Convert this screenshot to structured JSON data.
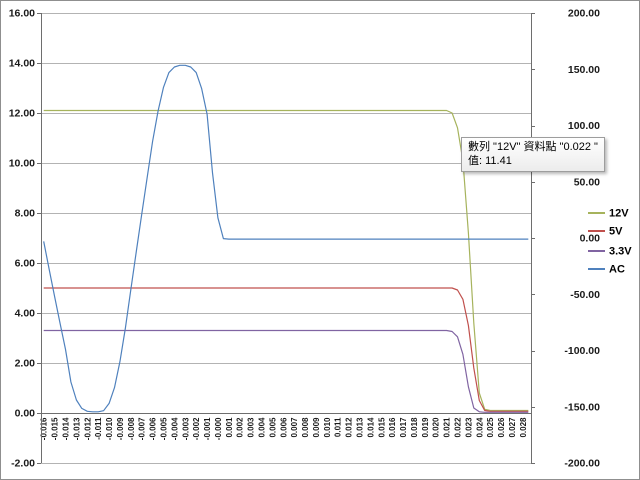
{
  "tooltip": {
    "line1": "數列 \"12V\" 資料點 \"0.022 \"",
    "line2": "值: 11.41"
  },
  "chart_data": {
    "type": "line",
    "title": "",
    "xlabel": "",
    "ylabel_left": "",
    "ylabel_right": "",
    "grid": "horizontal-major",
    "legend_position": "right",
    "axis_left": {
      "min": -2,
      "max": 16,
      "step": 2,
      "tick_labels": [
        "16.00",
        "14.00",
        "12.00",
        "10.00",
        "8.00",
        "6.00",
        "4.00",
        "2.00",
        "0.00",
        "-2.00"
      ]
    },
    "axis_right": {
      "min": -200,
      "max": 200,
      "step": 50,
      "tick_labels": [
        "200.00",
        "150.00",
        "100.00",
        "50.00",
        "0.00",
        "-50.00",
        "-100.00",
        "-150.00",
        "-200.00"
      ]
    },
    "x_tick_labels": [
      "-0.016",
      "-0.015",
      "-0.014",
      "-0.013",
      "-0.012",
      "-0.011",
      "-0.010",
      "-0.009",
      "-0.008",
      "-0.007",
      "-0.006",
      "-0.005",
      "-0.004",
      "-0.003",
      "-0.002",
      "-0.001",
      "-0.000",
      "0.001",
      "0.002",
      "0.003",
      "0.004",
      "0.005",
      "0.006",
      "0.007",
      "0.008",
      "0.009",
      "0.010",
      "0.011",
      "0.012",
      "0.013",
      "0.014",
      "0.015",
      "0.016",
      "0.017",
      "0.018",
      "0.019",
      "0.020",
      "0.021",
      "0.022",
      "0.023",
      "0.024",
      "0.025",
      "0.026",
      "0.027",
      "0.028"
    ],
    "x": [
      -0.016,
      -0.0155,
      -0.015,
      -0.0145,
      -0.014,
      -0.0135,
      -0.013,
      -0.0125,
      -0.012,
      -0.0115,
      -0.011,
      -0.0105,
      -0.01,
      -0.0095,
      -0.009,
      -0.0085,
      -0.008,
      -0.0075,
      -0.007,
      -0.0065,
      -0.006,
      -0.0055,
      -0.005,
      -0.0045,
      -0.004,
      -0.0035,
      -0.003,
      -0.0025,
      -0.002,
      -0.0015,
      -0.001,
      -0.0005,
      0,
      0.0005,
      0.001,
      0.0015,
      0.002,
      0.0025,
      0.003,
      0.0035,
      0.004,
      0.0045,
      0.005,
      0.0055,
      0.006,
      0.0065,
      0.007,
      0.0075,
      0.008,
      0.0085,
      0.009,
      0.0095,
      0.01,
      0.0105,
      0.011,
      0.0115,
      0.012,
      0.0125,
      0.013,
      0.0135,
      0.014,
      0.0145,
      0.015,
      0.0155,
      0.016,
      0.0165,
      0.017,
      0.0175,
      0.018,
      0.0185,
      0.019,
      0.0195,
      0.02,
      0.0205,
      0.021,
      0.0215,
      0.022,
      0.0225,
      0.023,
      0.0235,
      0.024,
      0.0245,
      0.025,
      0.0255,
      0.026,
      0.0265,
      0.027,
      0.0275,
      0.028,
      0.0285
    ],
    "series": [
      {
        "name": "12V",
        "axis": "left",
        "color": "#a6b35c",
        "values": [
          12.1,
          12.1,
          12.1,
          12.1,
          12.1,
          12.1,
          12.1,
          12.1,
          12.1,
          12.1,
          12.1,
          12.1,
          12.1,
          12.1,
          12.1,
          12.1,
          12.1,
          12.1,
          12.1,
          12.1,
          12.1,
          12.1,
          12.1,
          12.1,
          12.1,
          12.1,
          12.1,
          12.1,
          12.1,
          12.1,
          12.1,
          12.1,
          12.1,
          12.1,
          12.1,
          12.1,
          12.1,
          12.1,
          12.1,
          12.1,
          12.1,
          12.1,
          12.1,
          12.1,
          12.1,
          12.1,
          12.1,
          12.1,
          12.1,
          12.1,
          12.1,
          12.1,
          12.1,
          12.1,
          12.1,
          12.1,
          12.1,
          12.1,
          12.1,
          12.1,
          12.1,
          12.1,
          12.1,
          12.1,
          12.1,
          12.1,
          12.1,
          12.1,
          12.1,
          12.1,
          12.1,
          12.1,
          12.1,
          12.1,
          12.1,
          12.0,
          11.41,
          10.1,
          7.2,
          3.6,
          0.8,
          0.15,
          0.1,
          0.1,
          0.1,
          0.1,
          0.1,
          0.1,
          0.1,
          0.1
        ]
      },
      {
        "name": "5V",
        "axis": "left",
        "color": "#c0504d",
        "values": [
          5,
          5,
          5,
          5,
          5,
          5,
          5,
          5,
          5,
          5,
          5,
          5,
          5,
          5,
          5,
          5,
          5,
          5,
          5,
          5,
          5,
          5,
          5,
          5,
          5,
          5,
          5,
          5,
          5,
          5,
          5,
          5,
          5,
          5,
          5,
          5,
          5,
          5,
          5,
          5,
          5,
          5,
          5,
          5,
          5,
          5,
          5,
          5,
          5,
          5,
          5,
          5,
          5,
          5,
          5,
          5,
          5,
          5,
          5,
          5,
          5,
          5,
          5,
          5,
          5,
          5,
          5,
          5,
          5,
          5,
          5,
          5,
          5,
          5,
          5,
          5,
          4.92,
          4.55,
          3.5,
          1.8,
          0.5,
          0.1,
          0.07,
          0.07,
          0.07,
          0.07,
          0.07,
          0.07,
          0.07,
          0.07
        ]
      },
      {
        "name": "3.3V",
        "axis": "left",
        "color": "#8064a2",
        "values": [
          3.3,
          3.3,
          3.3,
          3.3,
          3.3,
          3.3,
          3.3,
          3.3,
          3.3,
          3.3,
          3.3,
          3.3,
          3.3,
          3.3,
          3.3,
          3.3,
          3.3,
          3.3,
          3.3,
          3.3,
          3.3,
          3.3,
          3.3,
          3.3,
          3.3,
          3.3,
          3.3,
          3.3,
          3.3,
          3.3,
          3.3,
          3.3,
          3.3,
          3.3,
          3.3,
          3.3,
          3.3,
          3.3,
          3.3,
          3.3,
          3.3,
          3.3,
          3.3,
          3.3,
          3.3,
          3.3,
          3.3,
          3.3,
          3.3,
          3.3,
          3.3,
          3.3,
          3.3,
          3.3,
          3.3,
          3.3,
          3.3,
          3.3,
          3.3,
          3.3,
          3.3,
          3.3,
          3.3,
          3.3,
          3.3,
          3.3,
          3.3,
          3.3,
          3.3,
          3.3,
          3.3,
          3.3,
          3.3,
          3.3,
          3.3,
          3.26,
          3.05,
          2.35,
          1.05,
          0.2,
          0.05,
          0.03,
          0.03,
          0.03,
          0.03,
          0.03,
          0.03,
          0.03,
          0.03,
          0.03
        ]
      },
      {
        "name": "AC",
        "axis": "right",
        "color": "#4f81bd",
        "values": [
          -3,
          -28,
          -52,
          -76,
          -99,
          -128,
          -144,
          -151.5,
          -154,
          -154.5,
          -154.5,
          -153.5,
          -147,
          -133,
          -110,
          -80,
          -46,
          -12,
          21,
          54,
          86,
          113,
          134,
          147,
          152,
          153.5,
          153.5,
          152,
          147,
          133,
          110,
          58,
          18,
          -0.5,
          -1,
          -1,
          -1,
          -1,
          -1,
          -1,
          -1,
          -1,
          -1,
          -1,
          -1,
          -1,
          -1,
          -1,
          -1,
          -1,
          -1,
          -1,
          -1,
          -1,
          -1,
          -1,
          -1,
          -1,
          -1,
          -1,
          -1,
          -1,
          -1,
          -1,
          -1,
          -1,
          -1,
          -1,
          -1,
          -1,
          -1,
          -1,
          -1,
          -1,
          -1,
          -1,
          -1,
          -1,
          -1,
          -1,
          -1,
          -1,
          -1,
          -1,
          -1,
          -1,
          -1,
          -1,
          -1,
          -1
        ]
      }
    ]
  },
  "style_colors": {
    "gridline": "#b3b3b3",
    "axis_line": "#6e6e6e",
    "label_text": "#1a1a1a"
  }
}
